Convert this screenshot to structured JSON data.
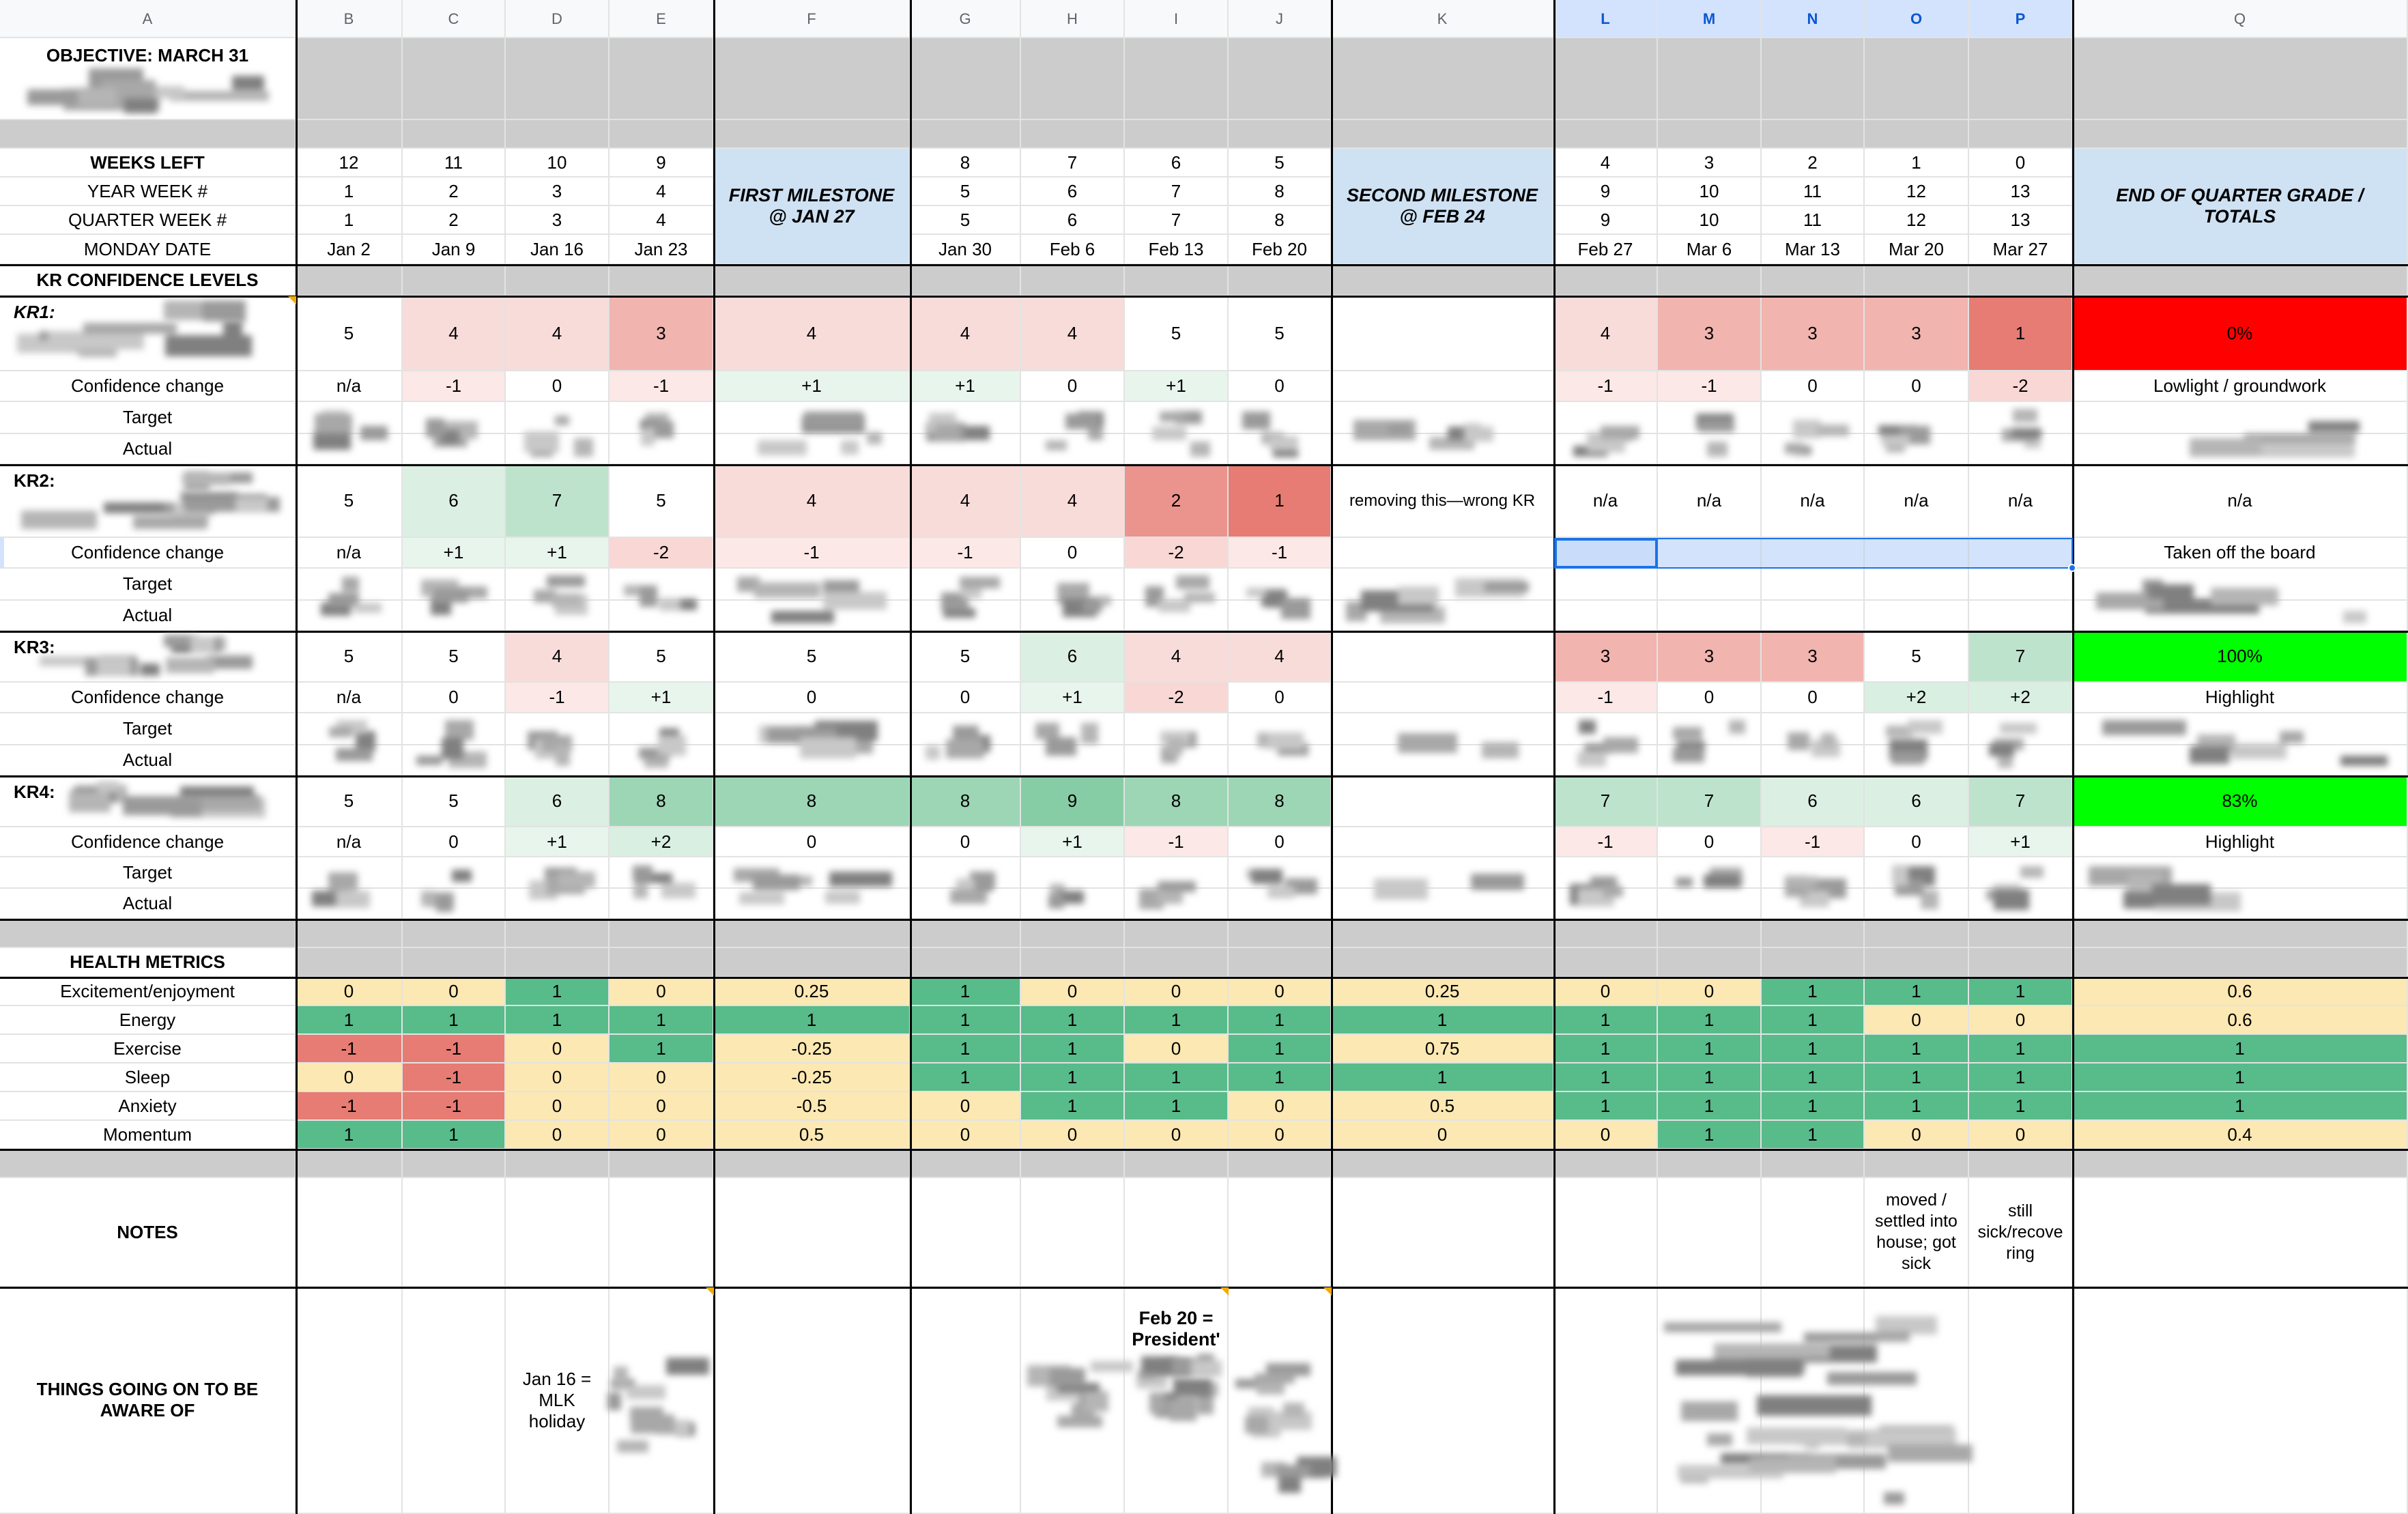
{
  "columns": [
    "A",
    "B",
    "C",
    "D",
    "E",
    "F",
    "G",
    "H",
    "I",
    "J",
    "K",
    "L",
    "M",
    "N",
    "O",
    "P",
    "Q"
  ],
  "objective": {
    "title": "OBJECTIVE: MARCH 31"
  },
  "weeks_left": {
    "label": "WEEKS LEFT",
    "values": [
      "12",
      "11",
      "10",
      "9",
      "",
      "8",
      "7",
      "6",
      "5",
      "",
      "4",
      "3",
      "2",
      "1",
      "0",
      ""
    ]
  },
  "year_week": {
    "label": "YEAR WEEK #",
    "values": [
      "1",
      "2",
      "3",
      "4",
      "",
      "5",
      "6",
      "7",
      "8",
      "",
      "9",
      "10",
      "11",
      "12",
      "13",
      ""
    ]
  },
  "quarter_week": {
    "label": "QUARTER WEEK #",
    "values": [
      "1",
      "2",
      "3",
      "4",
      "",
      "5",
      "6",
      "7",
      "8",
      "",
      "9",
      "10",
      "11",
      "12",
      "13",
      ""
    ]
  },
  "monday_date": {
    "label": "MONDAY DATE",
    "values": [
      "Jan 2",
      "Jan 9",
      "Jan 16",
      "Jan 23",
      "",
      "Jan 30",
      "Feb 6",
      "Feb 13",
      "Feb 20",
      "",
      "Feb 27",
      "Mar 6",
      "Mar 13",
      "Mar 20",
      "Mar 27",
      ""
    ]
  },
  "milestones": {
    "first": "FIRST MILESTONE @ JAN 27",
    "second": "SECOND MILESTONE @ FEB 24",
    "end": "END OF QUARTER GRADE / TOTALS"
  },
  "kr_section": "KR CONFIDENCE LEVELS",
  "krs": [
    {
      "label": "KR1:",
      "confidence": [
        "5",
        "4",
        "4",
        "3",
        "4",
        "4",
        "4",
        "5",
        "5",
        "",
        "4",
        "3",
        "3",
        "3",
        "1",
        "0%"
      ],
      "change_label": "Confidence change",
      "change": [
        "n/a",
        "-1",
        "0",
        "-1",
        "+1",
        "+1",
        "0",
        "+1",
        "0",
        "",
        "-1",
        "-1",
        "0",
        "0",
        "-2",
        "Lowlight / groundwork"
      ],
      "target_label": "Target",
      "actual_label": "Actual"
    },
    {
      "label": "KR2:",
      "confidence": [
        "5",
        "6",
        "7",
        "5",
        "4",
        "4",
        "4",
        "2",
        "1",
        "removing this—wrong KR",
        "n/a",
        "n/a",
        "n/a",
        "n/a",
        "n/a",
        "n/a"
      ],
      "change_label": "Confidence change",
      "change": [
        "n/a",
        "+1",
        "+1",
        "-2",
        "-1",
        "-1",
        "0",
        "-2",
        "-1",
        "",
        "",
        "",
        "",
        "",
        "",
        "Taken off the board"
      ],
      "target_label": "Target",
      "actual_label": "Actual"
    },
    {
      "label": "KR3:",
      "confidence": [
        "5",
        "5",
        "4",
        "5",
        "5",
        "5",
        "6",
        "4",
        "4",
        "",
        "3",
        "3",
        "3",
        "5",
        "7",
        "100%"
      ],
      "change_label": "Confidence change",
      "change": [
        "n/a",
        "0",
        "-1",
        "+1",
        "0",
        "0",
        "+1",
        "-2",
        "0",
        "",
        "-1",
        "0",
        "0",
        "+2",
        "+2",
        "Highlight"
      ],
      "target_label": "Target",
      "actual_label": "Actual"
    },
    {
      "label": "KR4:",
      "confidence": [
        "5",
        "5",
        "6",
        "8",
        "8",
        "8",
        "9",
        "8",
        "8",
        "",
        "7",
        "7",
        "6",
        "6",
        "7",
        "83%"
      ],
      "change_label": "Confidence change",
      "change": [
        "n/a",
        "0",
        "+1",
        "+2",
        "0",
        "0",
        "+1",
        "-1",
        "0",
        "",
        "-1",
        "0",
        "-1",
        "0",
        "+1",
        "Highlight"
      ],
      "target_label": "Target",
      "actual_label": "Actual"
    }
  ],
  "health": {
    "label": "HEALTH METRICS",
    "rows": [
      {
        "label": "Excitement/enjoyment",
        "values": [
          "0",
          "0",
          "1",
          "0",
          "0.25",
          "1",
          "0",
          "0",
          "0",
          "0.25",
          "0",
          "0",
          "1",
          "1",
          "1",
          "0.6"
        ]
      },
      {
        "label": "Energy",
        "values": [
          "1",
          "1",
          "1",
          "1",
          "1",
          "1",
          "1",
          "1",
          "1",
          "1",
          "1",
          "1",
          "1",
          "0",
          "0",
          "0.6"
        ]
      },
      {
        "label": "Exercise",
        "values": [
          "-1",
          "-1",
          "0",
          "1",
          "-0.25",
          "1",
          "1",
          "0",
          "1",
          "0.75",
          "1",
          "1",
          "1",
          "1",
          "1",
          "1"
        ]
      },
      {
        "label": "Sleep",
        "values": [
          "0",
          "-1",
          "0",
          "0",
          "-0.25",
          "1",
          "1",
          "1",
          "1",
          "1",
          "1",
          "1",
          "1",
          "1",
          "1",
          "1"
        ]
      },
      {
        "label": "Anxiety",
        "values": [
          "-1",
          "-1",
          "0",
          "0",
          "-0.5",
          "0",
          "1",
          "1",
          "0",
          "0.5",
          "1",
          "1",
          "1",
          "1",
          "1",
          "1"
        ]
      },
      {
        "label": "Momentum",
        "values": [
          "1",
          "1",
          "0",
          "0",
          "0.5",
          "0",
          "0",
          "0",
          "0",
          "0",
          "0",
          "1",
          "1",
          "0",
          "0",
          "0.4"
        ]
      }
    ]
  },
  "notes": {
    "label": "NOTES",
    "O": "moved / settled into house; got sick",
    "P": "still sick/recove ring"
  },
  "things": {
    "label": "THINGS GOING ON TO BE AWARE OF",
    "D": "Jan 16 = MLK holiday",
    "J": "Feb 20 = President'"
  },
  "colors": {
    "red_kr1": "#ff0000",
    "green_kr": "#00ff00",
    "h_green": "#57bb8a",
    "h_yellow": "#fce8b2",
    "h_red": "#e67c73",
    "h_orange": "#f5c49e",
    "h_light_green": "#a7d39a",
    "h_mid_green": "#82c491",
    "header_gray": "#f8f9fa",
    "spacer_gray": "#cccccc",
    "milestone_blue": "#cfe2f3"
  }
}
